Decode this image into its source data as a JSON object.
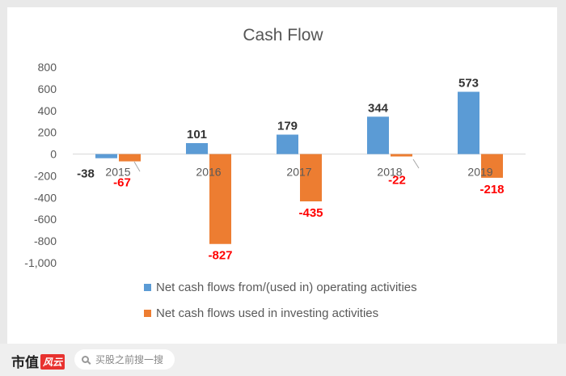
{
  "chart_data": {
    "type": "bar",
    "title": "Cash Flow",
    "categories": [
      "2015",
      "2016",
      "2017",
      "2018",
      "2019"
    ],
    "series": [
      {
        "name": "Net cash flows from/(used in) operating activities",
        "values": [
          -38,
          101,
          179,
          344,
          573
        ],
        "color": "#5b9bd5",
        "label_color": "#333333"
      },
      {
        "name": "Net cash flows used in investing activities",
        "values": [
          -67,
          -827,
          -435,
          -22,
          -218
        ],
        "color": "#ed7d31",
        "label_color": "#ff0000"
      }
    ],
    "yticks": [
      "800",
      "600",
      "400",
      "200",
      "0",
      "-200",
      "-400",
      "-600",
      "-800",
      "-1,000"
    ],
    "ylim": [
      -1000,
      800
    ],
    "grid": false,
    "legend": "bottom"
  },
  "footer": {
    "brand": "市值",
    "brand_accent": "风云",
    "search_placeholder": "买股之前搜一搜"
  }
}
